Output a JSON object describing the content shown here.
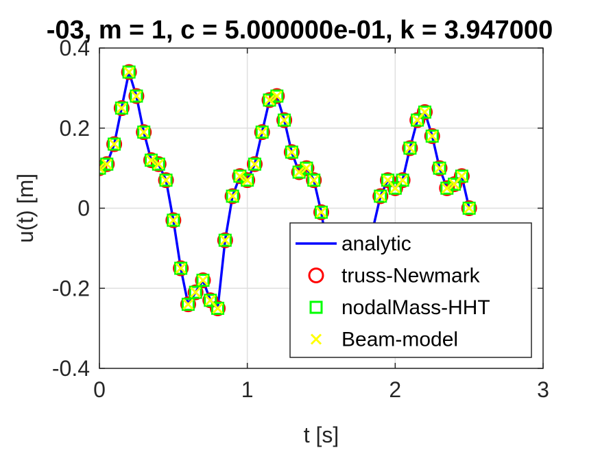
{
  "chart_data": {
    "type": "line",
    "title": "-03, m = 1, c = 5.000000e-01, k = 3.947000",
    "xlabel": "t [s]",
    "ylabel": "u(t) [m]",
    "xlim": [
      0,
      3
    ],
    "ylim": [
      -0.4,
      0.4
    ],
    "xticks": [
      "0",
      "1",
      "2",
      "3"
    ],
    "yticks": [
      "-0.4",
      "-0.2",
      "0",
      "0.2",
      "0.4"
    ],
    "grid": true,
    "legend_position": "bottom-right",
    "series": [
      {
        "name": "analytic",
        "style": "line",
        "color": "#0000ff",
        "x": [
          0,
          0.05,
          0.1,
          0.15,
          0.2,
          0.25,
          0.3,
          0.35,
          0.4,
          0.45,
          0.5,
          0.55,
          0.6,
          0.65,
          0.7,
          0.75,
          0.8,
          0.85,
          0.9,
          0.95,
          1.0,
          1.05,
          1.1,
          1.15,
          1.2,
          1.25,
          1.3,
          1.35,
          1.4,
          1.45,
          1.5,
          1.55,
          1.6,
          1.65,
          1.7,
          1.75,
          1.8,
          1.85,
          1.9,
          1.95,
          2.0,
          2.05,
          2.1,
          2.15,
          2.2,
          2.25,
          2.3,
          2.35,
          2.4,
          2.45,
          2.5
        ],
        "y": [
          0.1,
          0.11,
          0.16,
          0.25,
          0.34,
          0.28,
          0.19,
          0.12,
          0.11,
          0.07,
          -0.03,
          -0.15,
          -0.24,
          -0.21,
          -0.18,
          -0.23,
          -0.25,
          -0.08,
          0.03,
          0.08,
          0.07,
          0.11,
          0.19,
          0.27,
          0.28,
          0.22,
          0.14,
          0.09,
          0.1,
          0.07,
          -0.01,
          -0.12,
          -0.22,
          -0.25,
          -0.24,
          -0.18,
          -0.12,
          -0.05,
          0.03,
          0.07,
          0.05,
          0.07,
          0.15,
          0.22,
          0.24,
          0.18,
          0.1,
          0.05,
          0.06,
          0.08,
          0.0
        ]
      },
      {
        "name": "truss-Newmark",
        "style": "marker-circle",
        "color": "#ff0000",
        "x": [
          0,
          0.05,
          0.1,
          0.15,
          0.2,
          0.25,
          0.3,
          0.35,
          0.4,
          0.45,
          0.5,
          0.55,
          0.6,
          0.65,
          0.7,
          0.75,
          0.8,
          0.85,
          0.9,
          0.95,
          1.0,
          1.05,
          1.1,
          1.15,
          1.2,
          1.25,
          1.3,
          1.35,
          1.4,
          1.45,
          1.5,
          1.9,
          1.95,
          2.0,
          2.05,
          2.1,
          2.15,
          2.2,
          2.25,
          2.3,
          2.35,
          2.4,
          2.45,
          2.5
        ],
        "y": [
          0.1,
          0.11,
          0.16,
          0.25,
          0.34,
          0.28,
          0.19,
          0.12,
          0.11,
          0.07,
          -0.03,
          -0.15,
          -0.24,
          -0.21,
          -0.18,
          -0.23,
          -0.25,
          -0.08,
          0.03,
          0.08,
          0.07,
          0.11,
          0.19,
          0.27,
          0.28,
          0.22,
          0.14,
          0.09,
          0.1,
          0.07,
          -0.01,
          0.03,
          0.07,
          0.05,
          0.07,
          0.15,
          0.22,
          0.24,
          0.18,
          0.1,
          0.05,
          0.06,
          0.08,
          0.0
        ]
      },
      {
        "name": "nodalMass-HHT",
        "style": "marker-square",
        "color": "#00ff00",
        "x": [
          0,
          0.05,
          0.1,
          0.15,
          0.2,
          0.25,
          0.3,
          0.35,
          0.4,
          0.45,
          0.5,
          0.55,
          0.6,
          0.65,
          0.7,
          0.75,
          0.8,
          0.85,
          0.9,
          0.95,
          1.0,
          1.05,
          1.1,
          1.15,
          1.2,
          1.25,
          1.3,
          1.35,
          1.4,
          1.45,
          1.5,
          1.9,
          1.95,
          2.0,
          2.05,
          2.1,
          2.15,
          2.2,
          2.25,
          2.3,
          2.35,
          2.4,
          2.45,
          2.5
        ],
        "y": [
          0.1,
          0.11,
          0.16,
          0.25,
          0.34,
          0.28,
          0.19,
          0.12,
          0.11,
          0.07,
          -0.03,
          -0.15,
          -0.24,
          -0.21,
          -0.18,
          -0.23,
          -0.25,
          -0.08,
          0.03,
          0.08,
          0.07,
          0.11,
          0.19,
          0.27,
          0.28,
          0.22,
          0.14,
          0.09,
          0.1,
          0.07,
          -0.01,
          0.03,
          0.07,
          0.05,
          0.07,
          0.15,
          0.22,
          0.24,
          0.18,
          0.1,
          0.05,
          0.06,
          0.08,
          0.0
        ]
      },
      {
        "name": "Beam-model",
        "style": "marker-x",
        "color": "#ffff00",
        "x": [
          0,
          0.05,
          0.1,
          0.15,
          0.2,
          0.25,
          0.3,
          0.35,
          0.4,
          0.45,
          0.5,
          0.55,
          0.6,
          0.65,
          0.7,
          0.75,
          0.8,
          0.85,
          0.9,
          0.95,
          1.0,
          1.05,
          1.1,
          1.15,
          1.2,
          1.25,
          1.3,
          1.35,
          1.4,
          1.45,
          1.5,
          1.9,
          1.95,
          2.0,
          2.05,
          2.1,
          2.15,
          2.2,
          2.25,
          2.3,
          2.35,
          2.4,
          2.45,
          2.5
        ],
        "y": [
          0.1,
          0.11,
          0.16,
          0.25,
          0.34,
          0.28,
          0.19,
          0.12,
          0.11,
          0.07,
          -0.03,
          -0.15,
          -0.24,
          -0.21,
          -0.18,
          -0.23,
          -0.25,
          -0.08,
          0.03,
          0.08,
          0.07,
          0.11,
          0.19,
          0.27,
          0.28,
          0.22,
          0.14,
          0.09,
          0.1,
          0.07,
          -0.01,
          0.03,
          0.07,
          0.05,
          0.07,
          0.15,
          0.22,
          0.24,
          0.18,
          0.1,
          0.05,
          0.06,
          0.08,
          0.0
        ]
      }
    ]
  }
}
